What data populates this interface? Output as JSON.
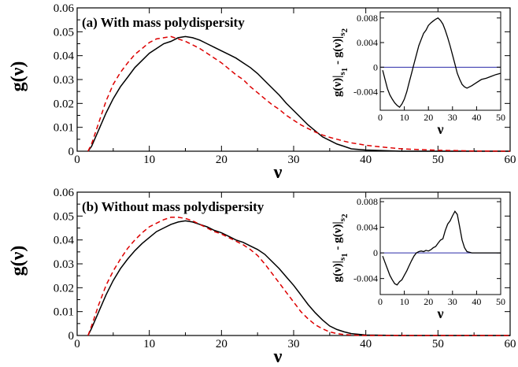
{
  "chart_data": [
    {
      "type": "line",
      "title": "(a) With mass polydispersity",
      "xlabel": "ν",
      "ylabel": "g(ν)",
      "xlim": [
        0,
        60
      ],
      "ylim": [
        0,
        0.06
      ],
      "xticks": [
        "0",
        "10",
        "20",
        "30",
        "40",
        "50",
        "60"
      ],
      "yticks": [
        "0",
        "0.01",
        "0.02",
        "0.03",
        "0.04",
        "0.05",
        "0.06"
      ],
      "grid": false,
      "series": [
        {
          "color": "#000000",
          "style": "solid",
          "x": [
            1.5,
            2,
            3,
            4,
            5,
            6,
            7,
            8,
            9,
            10,
            11,
            12,
            13,
            14,
            15,
            16,
            17,
            18,
            19,
            20,
            21,
            22,
            23,
            24,
            25,
            26,
            27,
            28,
            29,
            30,
            31,
            32,
            33,
            34,
            35,
            36,
            37,
            38,
            40,
            45,
            50,
            55,
            60
          ],
          "y": [
            0,
            0.002,
            0.009,
            0.016,
            0.022,
            0.027,
            0.031,
            0.035,
            0.038,
            0.041,
            0.043,
            0.045,
            0.046,
            0.0475,
            0.048,
            0.0475,
            0.0465,
            0.045,
            0.0435,
            0.042,
            0.0405,
            0.039,
            0.037,
            0.035,
            0.0325,
            0.0295,
            0.0265,
            0.0235,
            0.02,
            0.017,
            0.014,
            0.011,
            0.0085,
            0.006,
            0.0045,
            0.003,
            0.002,
            0.001,
            0.0005,
            0,
            0,
            0,
            0
          ]
        },
        {
          "color": "#dd0000",
          "style": "dashed",
          "x": [
            1.5,
            2,
            3,
            4,
            5,
            6,
            7,
            8,
            9,
            10,
            11,
            12,
            13,
            14,
            15,
            16,
            17,
            18,
            19,
            20,
            21,
            22,
            23,
            24,
            25,
            26,
            27,
            28,
            29,
            30,
            31,
            32,
            33,
            34,
            35,
            36,
            37,
            38,
            40,
            42,
            45,
            50,
            55,
            60
          ],
          "y": [
            0,
            0.003,
            0.012,
            0.021,
            0.028,
            0.033,
            0.037,
            0.0405,
            0.043,
            0.0455,
            0.047,
            0.0475,
            0.048,
            0.047,
            0.046,
            0.0445,
            0.043,
            0.041,
            0.039,
            0.037,
            0.0345,
            0.032,
            0.03,
            0.027,
            0.0245,
            0.022,
            0.0195,
            0.0175,
            0.015,
            0.013,
            0.011,
            0.0095,
            0.008,
            0.0068,
            0.0058,
            0.005,
            0.0042,
            0.0035,
            0.0025,
            0.0018,
            0.001,
            0.0004,
            0.0001,
            0
          ]
        }
      ],
      "inset": {
        "type": "line",
        "xlabel": "ν",
        "ylabel_main": "g(ν)|",
        "ylabel_s1": "s",
        "ylabel_s1_sub": "1",
        "ylabel_mid": " - g(ν)|",
        "ylabel_s2": "s",
        "ylabel_s2_sub": "2",
        "xlim": [
          0,
          50
        ],
        "ylim": [
          -0.007,
          0.009
        ],
        "xticks": [
          "0",
          "10",
          "20",
          "30",
          "40",
          "50"
        ],
        "yticks": [
          "-0.004",
          "0",
          "0.004",
          "0.008"
        ],
        "x": [
          1,
          2,
          3,
          4,
          5,
          6,
          7,
          8,
          9,
          10,
          11,
          12,
          13,
          14,
          15,
          16,
          17,
          18,
          19,
          20,
          21,
          22,
          23,
          24,
          25,
          26,
          27,
          28,
          29,
          30,
          31,
          32,
          33,
          34,
          35,
          36,
          38,
          40,
          42,
          44,
          46,
          48,
          50
        ],
        "y": [
          -0.0005,
          -0.002,
          -0.0035,
          -0.0045,
          -0.0052,
          -0.0058,
          -0.0062,
          -0.0065,
          -0.006,
          -0.0052,
          -0.004,
          -0.0025,
          -0.001,
          0.0005,
          0.002,
          0.0035,
          0.0045,
          0.0055,
          0.006,
          0.0068,
          0.0072,
          0.0075,
          0.0078,
          0.008,
          0.0076,
          0.007,
          0.006,
          0.0048,
          0.0035,
          0.002,
          0.0005,
          -0.001,
          -0.002,
          -0.0028,
          -0.0032,
          -0.0034,
          -0.003,
          -0.0025,
          -0.002,
          -0.0018,
          -0.0015,
          -0.0012,
          -0.001
        ]
      }
    },
    {
      "type": "line",
      "title": "(b) Without mass polydispersity",
      "xlabel": "ν",
      "ylabel": "g(ν)",
      "xlim": [
        0,
        60
      ],
      "ylim": [
        0,
        0.06
      ],
      "xticks": [
        "0",
        "10",
        "20",
        "30",
        "40",
        "50",
        "60"
      ],
      "yticks": [
        "0",
        "0.01",
        "0.02",
        "0.03",
        "0.04",
        "0.05",
        "0.06"
      ],
      "grid": false,
      "series": [
        {
          "color": "#000000",
          "style": "solid",
          "x": [
            1.5,
            2,
            3,
            4,
            5,
            6,
            7,
            8,
            9,
            10,
            11,
            12,
            13,
            14,
            15,
            16,
            17,
            18,
            19,
            20,
            21,
            22,
            23,
            24,
            25,
            26,
            27,
            28,
            29,
            30,
            31,
            32,
            33,
            34,
            35,
            36,
            37,
            38,
            40,
            45,
            50,
            55,
            60
          ],
          "y": [
            0,
            0.003,
            0.01,
            0.017,
            0.023,
            0.028,
            0.032,
            0.0355,
            0.0385,
            0.041,
            0.0435,
            0.045,
            0.0465,
            0.0475,
            0.048,
            0.0475,
            0.0465,
            0.0455,
            0.044,
            0.043,
            0.0415,
            0.04,
            0.039,
            0.0375,
            0.036,
            0.034,
            0.031,
            0.028,
            0.0245,
            0.021,
            0.017,
            0.013,
            0.0095,
            0.0065,
            0.004,
            0.0025,
            0.0015,
            0.0008,
            0.0002,
            0,
            0,
            0,
            0
          ]
        },
        {
          "color": "#dd0000",
          "style": "dashed",
          "x": [
            1.5,
            2,
            3,
            4,
            5,
            6,
            7,
            8,
            9,
            10,
            11,
            12,
            13,
            14,
            15,
            16,
            17,
            18,
            19,
            20,
            21,
            22,
            23,
            24,
            25,
            26,
            27,
            28,
            29,
            30,
            31,
            32,
            33,
            34,
            35,
            36,
            37,
            38,
            40,
            45,
            50,
            55,
            60
          ],
          "y": [
            0,
            0.004,
            0.013,
            0.021,
            0.027,
            0.032,
            0.0365,
            0.04,
            0.043,
            0.0455,
            0.047,
            0.0485,
            0.0495,
            0.0495,
            0.049,
            0.048,
            0.0465,
            0.045,
            0.0435,
            0.0425,
            0.041,
            0.0395,
            0.038,
            0.036,
            0.0335,
            0.03,
            0.026,
            0.022,
            0.018,
            0.014,
            0.01,
            0.007,
            0.0045,
            0.0028,
            0.0015,
            0.0008,
            0.0004,
            0.0002,
            0,
            0,
            0,
            0,
            0
          ]
        }
      ],
      "inset": {
        "type": "line",
        "xlabel": "ν",
        "ylabel_main": "g(ν)|",
        "ylabel_s1": "s",
        "ylabel_s1_sub": "1",
        "ylabel_mid": " - g(ν)|",
        "ylabel_s2": "s",
        "ylabel_s2_sub": "2",
        "xlim": [
          0,
          50
        ],
        "ylim": [
          -0.0065,
          0.0085
        ],
        "xticks": [
          "0",
          "10",
          "20",
          "30",
          "40",
          "50"
        ],
        "yticks": [
          "-0.004",
          "0",
          "0.004",
          "0.008"
        ],
        "x": [
          1,
          2,
          3,
          4,
          5,
          6,
          7,
          8,
          9,
          10,
          11,
          12,
          13,
          14,
          15,
          16,
          17,
          18,
          19,
          20,
          21,
          22,
          23,
          24,
          25,
          26,
          27,
          28,
          29,
          30,
          31,
          32,
          33,
          34,
          35,
          36,
          37,
          38,
          40,
          45,
          50
        ],
        "y": [
          -0.0005,
          -0.0015,
          -0.0025,
          -0.0035,
          -0.0042,
          -0.0048,
          -0.005,
          -0.0045,
          -0.0042,
          -0.0035,
          -0.0028,
          -0.002,
          -0.0012,
          -0.0005,
          0,
          0.0002,
          0.0003,
          0.0002,
          0.0004,
          0.0003,
          0.0005,
          0.0008,
          0.001,
          0.0015,
          0.002,
          0.0022,
          0.0035,
          0.0045,
          0.005,
          0.0058,
          0.0065,
          0.006,
          0.004,
          0.002,
          0.0008,
          0.0002,
          0.0001,
          0,
          0,
          0,
          0
        ]
      }
    }
  ]
}
